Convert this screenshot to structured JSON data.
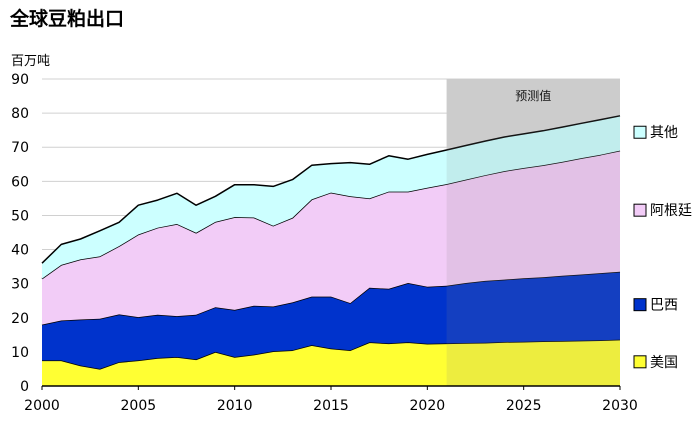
{
  "chart_data": {
    "type": "area",
    "stacked": true,
    "title": "全球豆粕出口",
    "ylabel": "百万吨",
    "xlabel": "",
    "xlim": [
      2000,
      2030
    ],
    "ylim": [
      0,
      90
    ],
    "x_ticks": [
      "2000",
      "2005",
      "2010",
      "2015",
      "2020",
      "2025",
      "2030"
    ],
    "y_ticks": [
      "0",
      "10",
      "20",
      "30",
      "40",
      "50",
      "60",
      "70",
      "80",
      "90"
    ],
    "grid": "horizontal",
    "legend_position": "right",
    "projection": {
      "label": "预测值",
      "start": 2021,
      "end": 2030,
      "shade_color": "#d9d9d9"
    },
    "x": [
      2000,
      2001,
      2002,
      2003,
      2004,
      2005,
      2006,
      2007,
      2008,
      2009,
      2010,
      2011,
      2012,
      2013,
      2014,
      2015,
      2016,
      2017,
      2018,
      2019,
      2020,
      2021,
      2022,
      2023,
      2024,
      2025,
      2026,
      2027,
      2028,
      2029,
      2030
    ],
    "series": [
      {
        "name": "美国",
        "color": "#ffff33",
        "values": [
          7.5,
          7.5,
          6,
          5,
          7,
          7.5,
          8.2,
          8.5,
          7.8,
          10,
          8.5,
          9.2,
          10.2,
          10.5,
          12,
          11,
          10.5,
          12.8,
          12.5,
          12.8,
          12.4,
          12.5,
          12.6,
          12.7,
          12.9,
          13,
          13.1,
          13.2,
          13.3,
          13.4,
          13.6
        ]
      },
      {
        "name": "巴西",
        "color": "#0033cc",
        "values": [
          10.5,
          11.7,
          13.5,
          14.7,
          14,
          12.7,
          12.7,
          12,
          13.1,
          13.1,
          13.8,
          14.3,
          13.1,
          14,
          14.2,
          15.2,
          13.8,
          16,
          16,
          17.4,
          16.7,
          16.9,
          17.6,
          18.1,
          18.3,
          18.6,
          18.8,
          19.1,
          19.4,
          19.7,
          19.9
        ]
      },
      {
        "name": "阿根廷",
        "color": "#f2ccf7",
        "values": [
          13.5,
          16.3,
          17.6,
          18.3,
          20,
          24.2,
          25.5,
          27,
          24,
          25,
          27.2,
          25.9,
          23.7,
          24.8,
          28.5,
          30.5,
          31.3,
          26.2,
          28.5,
          26.8,
          29,
          29.8,
          30.3,
          31,
          31.8,
          32.3,
          32.8,
          33.4,
          34.1,
          34.7,
          35.5
        ]
      },
      {
        "name": "其他",
        "color": "#ccffff",
        "values": [
          4.5,
          6,
          6,
          7.5,
          7,
          8.6,
          8.1,
          9,
          8.1,
          7.5,
          9.5,
          9.6,
          11.5,
          11.2,
          10,
          8.5,
          9.9,
          10,
          10.5,
          9.5,
          9.8,
          10,
          10,
          10,
          10,
          10,
          10.1,
          10.2,
          10.2,
          10.3,
          10.2
        ]
      }
    ]
  }
}
